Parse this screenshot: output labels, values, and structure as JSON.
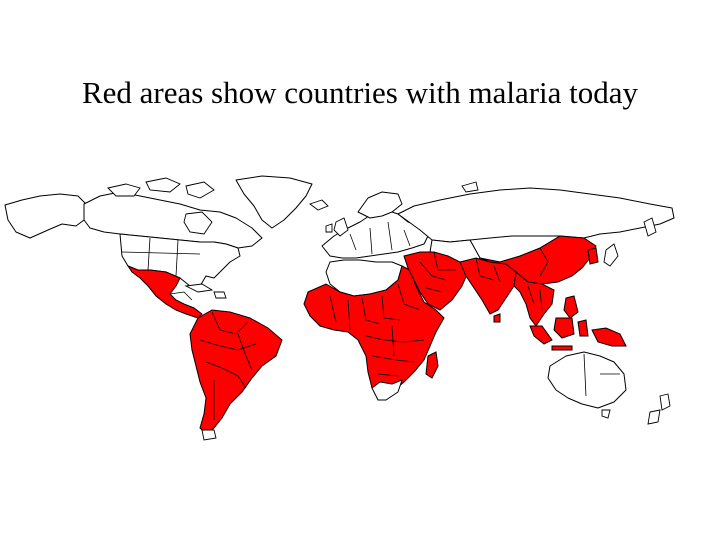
{
  "slide": {
    "title": "Red areas show countries with malaria today"
  },
  "map": {
    "legend_color": "#ff0000",
    "non_malaria_color": "#ffffff",
    "border_color": "#000000",
    "malaria_regions": [
      "mexico-central-america",
      "south-america",
      "sub-saharan-africa",
      "madagascar",
      "middle-east",
      "south-asia",
      "china",
      "southeast-asia",
      "philippines",
      "indonesia",
      "papua-new-guinea"
    ]
  }
}
